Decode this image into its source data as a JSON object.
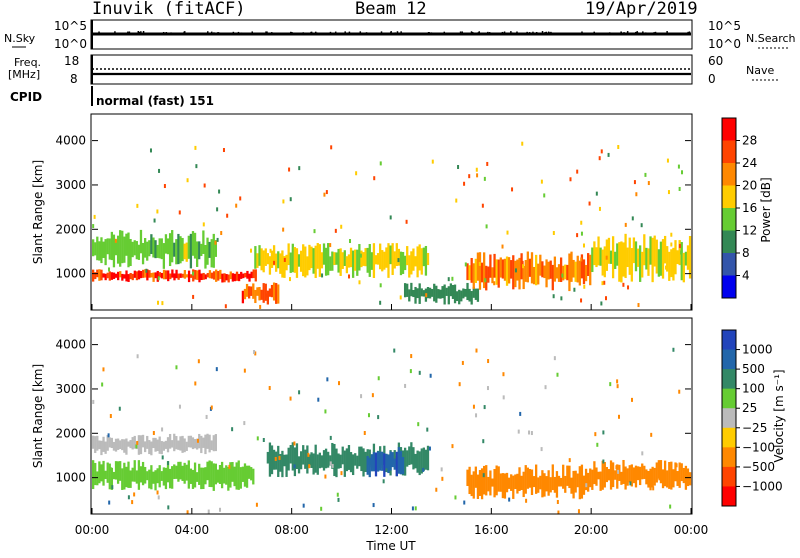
{
  "header": {
    "radar": "Inuvik (fitACF)",
    "beam": "Beam 12",
    "date": "19/Apr/2019"
  },
  "noise_panel": {
    "left_label": "N.Sky",
    "right_label": "N.Search",
    "left_ticks": [
      "10^5",
      "10^0"
    ],
    "right_ticks": [
      "10^5",
      "10^0"
    ]
  },
  "freq_panel": {
    "left_label_1": "Freq.",
    "left_label_2": "[MHz]",
    "right_label": "Nave",
    "left_ticks": [
      "18",
      "8"
    ],
    "right_ticks": [
      "60",
      "0"
    ]
  },
  "cpid": {
    "label": "CPID",
    "text": "normal (fast) 151"
  },
  "power_panel": {
    "ylabel": "Slant Range [km]",
    "y_ticks": [
      "4000",
      "3000",
      "2000",
      "1000"
    ],
    "cbar_label": "Power [dB]",
    "cbar_ticks": [
      "28",
      "24",
      "20",
      "16",
      "12",
      "8",
      "4"
    ],
    "cbar_colors": [
      "#ff0000",
      "#ff4400",
      "#ff8800",
      "#ffcc00",
      "#66cc33",
      "#338855",
      "#3355aa",
      "#0000ee"
    ]
  },
  "velocity_panel": {
    "ylabel": "Slant Range [km]",
    "y_ticks": [
      "4000",
      "3000",
      "2000",
      "1000"
    ],
    "cbar_label": "Velocity [m s⁻¹]",
    "cbar_ticks": [
      "1000",
      "500",
      "100",
      "25",
      "−25",
      "−100",
      "−500",
      "−1000"
    ],
    "cbar_colors": [
      "#2244bb",
      "#2266aa",
      "#338866",
      "#66cc33",
      "#bbbbbb",
      "#ffcc00",
      "#ff8800",
      "#ff4400",
      "#ff0000"
    ]
  },
  "xaxis": {
    "ticks": [
      "00:00",
      "04:00",
      "08:00",
      "12:00",
      "16:00",
      "20:00",
      "00:00"
    ],
    "label": "Time UT"
  },
  "chart_data": {
    "type": "heatmap",
    "x_range_hours": [
      0,
      24
    ],
    "y_range_km": [
      180,
      4600
    ],
    "power_features": [
      {
        "t0": 0.0,
        "t1": 6.6,
        "r0": 800,
        "r1": 1100,
        "value_db": 27
      },
      {
        "t0": 0.0,
        "t1": 5.0,
        "r0": 1100,
        "r1": 2000,
        "value_db": 14
      },
      {
        "t0": 6.0,
        "t1": 7.5,
        "r0": 300,
        "r1": 800,
        "value_db": 25
      },
      {
        "t0": 6.5,
        "t1": 13.5,
        "r0": 900,
        "r1": 1700,
        "value_db": 17
      },
      {
        "t0": 12.5,
        "t1": 15.5,
        "r0": 300,
        "r1": 800,
        "value_db": 10
      },
      {
        "t0": 15.0,
        "t1": 20.0,
        "r0": 600,
        "r1": 1500,
        "value_db": 23
      },
      {
        "t0": 20.0,
        "t1": 24.0,
        "r0": 800,
        "r1": 1900,
        "value_db": 17
      }
    ],
    "velocity_features": [
      {
        "t0": 0.0,
        "t1": 5.0,
        "r0": 1500,
        "r1": 2000,
        "value_ms": -10
      },
      {
        "t0": 0.0,
        "t1": 6.5,
        "r0": 700,
        "r1": 1400,
        "value_ms": 60
      },
      {
        "t0": 7.0,
        "t1": 13.5,
        "r0": 1000,
        "r1": 1800,
        "value_ms": 300
      },
      {
        "t0": 11.0,
        "t1": 12.5,
        "r0": 1000,
        "r1": 1700,
        "value_ms": 900
      },
      {
        "t0": 15.0,
        "t1": 20.0,
        "r0": 500,
        "r1": 1300,
        "value_ms": -300
      },
      {
        "t0": 20.0,
        "t1": 24.0,
        "r0": 700,
        "r1": 1400,
        "value_ms": -400
      }
    ]
  }
}
